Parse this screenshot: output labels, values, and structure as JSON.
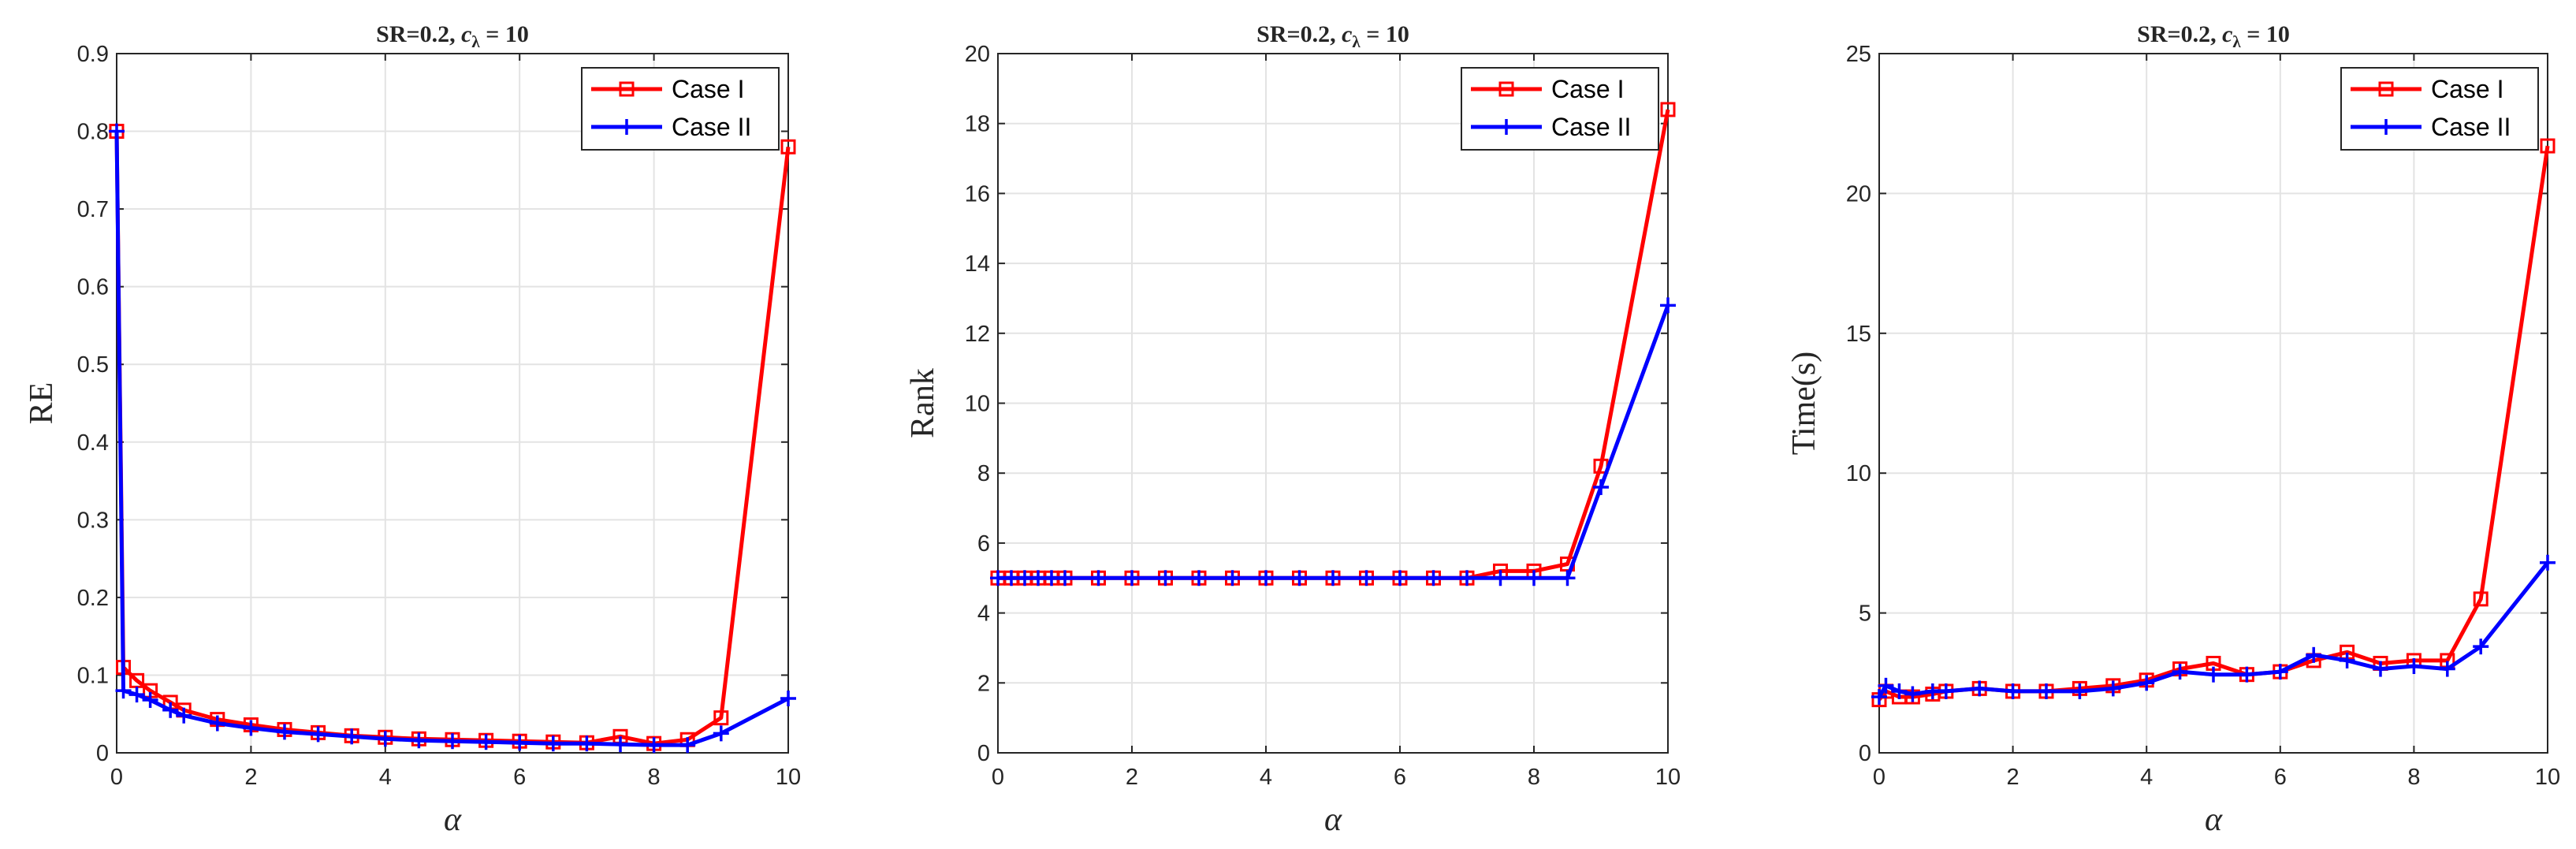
{
  "chart_data": [
    {
      "type": "line",
      "title_main": "SR=0.2, ",
      "title_sym": "c",
      "title_sub": "λ",
      "title_tail": " = 10",
      "xlabel": "α",
      "ylabel": "RE",
      "xlim": [
        0,
        10
      ],
      "ylim": [
        0,
        0.9
      ],
      "xticks": [
        "0",
        "2",
        "4",
        "6",
        "8",
        "10"
      ],
      "yticks": [
        "0",
        "0.1",
        "0.2",
        "0.3",
        "0.4",
        "0.5",
        "0.6",
        "0.7",
        "0.8",
        "0.9"
      ],
      "grid": true,
      "legend_position": "top-right",
      "x": [
        0,
        0.1,
        0.3,
        0.5,
        0.8,
        1,
        1.5,
        2,
        2.5,
        3,
        3.5,
        4,
        4.5,
        5,
        5.5,
        6,
        6.5,
        7,
        7.5,
        8,
        8.5,
        9,
        10
      ],
      "series": [
        {
          "name": "Case I",
          "color": "#ff0000",
          "marker": "square",
          "values": [
            0.8,
            0.11,
            0.093,
            0.08,
            0.065,
            0.055,
            0.043,
            0.036,
            0.03,
            0.026,
            0.022,
            0.02,
            0.018,
            0.017,
            0.016,
            0.015,
            0.014,
            0.013,
            0.021,
            0.012,
            0.017,
            0.045,
            0.78
          ]
        },
        {
          "name": "Case II",
          "color": "#0000ff",
          "marker": "plus",
          "values": [
            0.8,
            0.08,
            0.075,
            0.068,
            0.055,
            0.048,
            0.038,
            0.032,
            0.027,
            0.024,
            0.021,
            0.018,
            0.016,
            0.015,
            0.014,
            0.013,
            0.012,
            0.012,
            0.011,
            0.01,
            0.01,
            0.025,
            0.07
          ]
        }
      ]
    },
    {
      "type": "line",
      "title_main": "SR=0.2, ",
      "title_sym": "c",
      "title_sub": "λ",
      "title_tail": " = 10",
      "xlabel": "α",
      "ylabel": "Rank",
      "xlim": [
        0,
        10
      ],
      "ylim": [
        0,
        20
      ],
      "xticks": [
        "0",
        "2",
        "4",
        "6",
        "8",
        "10"
      ],
      "yticks": [
        "0",
        "2",
        "4",
        "6",
        "8",
        "10",
        "12",
        "14",
        "16",
        "18",
        "20"
      ],
      "grid": true,
      "legend_position": "top-right",
      "x": [
        0,
        0.2,
        0.4,
        0.6,
        0.8,
        1,
        1.5,
        2,
        2.5,
        3,
        3.5,
        4,
        4.5,
        5,
        5.5,
        6,
        6.5,
        7,
        7.5,
        8,
        8.5,
        9,
        10
      ],
      "series": [
        {
          "name": "Case I",
          "color": "#ff0000",
          "marker": "square",
          "values": [
            5,
            5,
            5,
            5,
            5,
            5,
            5,
            5,
            5,
            5,
            5,
            5,
            5,
            5,
            5,
            5,
            5,
            5,
            5.2,
            5.2,
            5.4,
            8.2,
            18.4
          ]
        },
        {
          "name": "Case II",
          "color": "#0000ff",
          "marker": "plus",
          "values": [
            5,
            5,
            5,
            5,
            5,
            5,
            5,
            5,
            5,
            5,
            5,
            5,
            5,
            5,
            5,
            5,
            5,
            5,
            5,
            5,
            5,
            7.6,
            12.8
          ]
        }
      ]
    },
    {
      "type": "line",
      "title_main": "SR=0.2, ",
      "title_sym": "c",
      "title_sub": "λ",
      "title_tail": " = 10",
      "xlabel": "α",
      "ylabel": "Time(s)",
      "xlim": [
        0,
        10
      ],
      "ylim": [
        0,
        25
      ],
      "xticks": [
        "0",
        "2",
        "4",
        "6",
        "8",
        "10"
      ],
      "yticks": [
        "0",
        "5",
        "10",
        "15",
        "20",
        "25"
      ],
      "grid": true,
      "legend_position": "top-right",
      "x": [
        0,
        0.1,
        0.3,
        0.5,
        0.8,
        1,
        1.5,
        2,
        2.5,
        3,
        3.5,
        4,
        4.5,
        5,
        5.5,
        6,
        6.5,
        7,
        7.5,
        8,
        8.5,
        9,
        10
      ],
      "series": [
        {
          "name": "Case I",
          "color": "#ff0000",
          "marker": "square",
          "values": [
            1.9,
            2.2,
            2.0,
            2.0,
            2.1,
            2.2,
            2.3,
            2.2,
            2.2,
            2.3,
            2.4,
            2.6,
            3.0,
            3.2,
            2.8,
            2.9,
            3.3,
            3.6,
            3.2,
            3.3,
            3.3,
            5.5,
            21.7
          ]
        },
        {
          "name": "Case II",
          "color": "#0000ff",
          "marker": "plus",
          "values": [
            2.0,
            2.4,
            2.2,
            2.1,
            2.2,
            2.2,
            2.3,
            2.2,
            2.2,
            2.2,
            2.3,
            2.5,
            2.9,
            2.8,
            2.8,
            2.9,
            3.5,
            3.3,
            3.0,
            3.1,
            3.0,
            3.8,
            6.8
          ]
        }
      ]
    }
  ]
}
